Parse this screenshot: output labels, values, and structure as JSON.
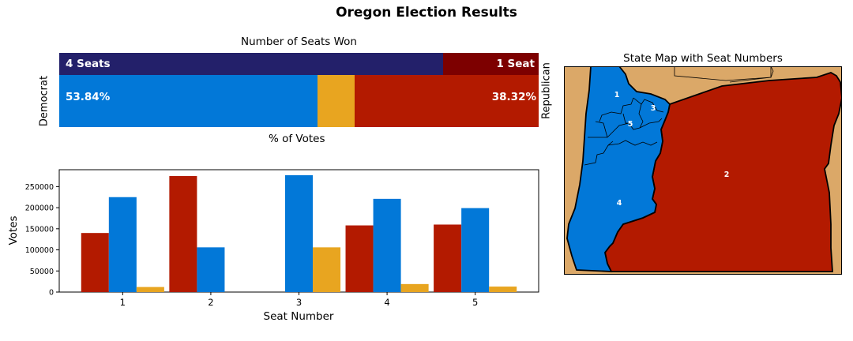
{
  "title": "Oregon Election Results",
  "colors": {
    "democrat": "#0278d8",
    "republican": "#b31a00",
    "other": "#e8a520",
    "dem_seats": "#23206a",
    "rep_seats": "#7d0000",
    "ocean": "#00ffff",
    "neighbors": "#dba868"
  },
  "seats_panel": {
    "title": "Number of Seats Won",
    "dem_seats_label": "4 Seats",
    "rep_seats_label": "1 Seat",
    "dem_seats": 4,
    "rep_seats": 1,
    "dem_pct_label": "53.84%",
    "rep_pct_label": "38.32%",
    "dem_pct": 53.84,
    "rep_pct": 38.32,
    "other_pct": 7.84,
    "left_axis_label": "Democrat",
    "right_axis_label": "Republican",
    "xlabel": "% of Votes"
  },
  "chart_data": {
    "type": "bar",
    "categories": [
      "1",
      "2",
      "3",
      "4",
      "5"
    ],
    "series": [
      {
        "key": "republican",
        "values": [
          140000,
          275000,
          0,
          158000,
          160000
        ]
      },
      {
        "key": "democrat",
        "values": [
          225000,
          106000,
          277000,
          221000,
          199000
        ]
      },
      {
        "key": "other",
        "values": [
          12000,
          0,
          106000,
          19000,
          13000
        ]
      }
    ],
    "xlabel": "Seat Number",
    "ylabel": "Votes",
    "yticks": [
      "0",
      "50000",
      "100000",
      "150000",
      "200000",
      "250000"
    ],
    "ylim": [
      0,
      290000
    ]
  },
  "map": {
    "title": "State Map with Seat Numbers",
    "districts": [
      {
        "label": "1",
        "party": "democrat"
      },
      {
        "label": "2",
        "party": "republican"
      },
      {
        "label": "3",
        "party": "democrat"
      },
      {
        "label": "4",
        "party": "democrat"
      },
      {
        "label": "5",
        "party": "democrat"
      }
    ]
  }
}
